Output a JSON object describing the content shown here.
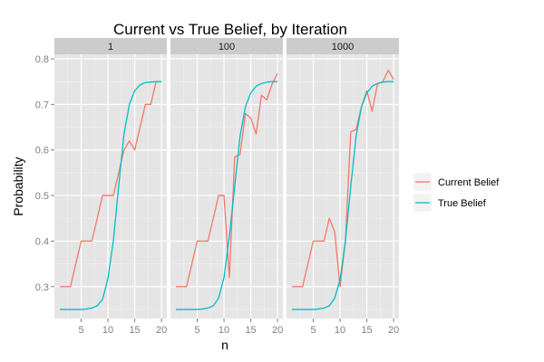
{
  "chart_data": {
    "type": "line",
    "title": "Current vs True Belief, by Iteration",
    "xlabel": "n",
    "ylabel": "Probability",
    "xlim": [
      0,
      21
    ],
    "ylim": [
      0.23,
      0.81
    ],
    "x_ticks": [
      5,
      10,
      15,
      20
    ],
    "y_ticks": [
      0.3,
      0.4,
      0.5,
      0.6,
      0.7,
      0.8
    ],
    "grid": true,
    "legend_position": "right",
    "colors": {
      "panel_bg": "#e5e5e5",
      "strip_bg": "#cccccc",
      "grid_major": "#ffffff",
      "grid_minor": "#f2f2f2",
      "Current Belief": "#f8766d",
      "True Belief": "#00bfc4"
    },
    "panels": [
      {
        "label": "1",
        "series": [
          {
            "name": "Current Belief",
            "x": [
              1,
              2,
              3,
              4,
              5,
              6,
              7,
              8,
              9,
              10,
              11,
              12,
              13,
              14,
              15,
              16,
              17,
              18,
              19,
              20
            ],
            "y": [
              0.3,
              0.3,
              0.3,
              0.35,
              0.4,
              0.4,
              0.4,
              0.45,
              0.5,
              0.5,
              0.5,
              0.55,
              0.6,
              0.62,
              0.6,
              0.65,
              0.7,
              0.7,
              0.75,
              0.75
            ]
          },
          {
            "name": "True Belief",
            "x": [
              1,
              2,
              3,
              4,
              5,
              6,
              7,
              8,
              9,
              10,
              11,
              12,
              13,
              14,
              15,
              16,
              17,
              18,
              19,
              20
            ],
            "y": [
              0.25,
              0.25,
              0.25,
              0.25,
              0.25,
              0.251,
              0.253,
              0.258,
              0.272,
              0.318,
              0.4,
              0.52,
              0.635,
              0.7,
              0.73,
              0.743,
              0.748,
              0.749,
              0.75,
              0.75
            ]
          }
        ]
      },
      {
        "label": "100",
        "series": [
          {
            "name": "Current Belief",
            "x": [
              1,
              2,
              3,
              4,
              5,
              6,
              7,
              8,
              9,
              10,
              11,
              12,
              13,
              14,
              15,
              16,
              17,
              18,
              19,
              20
            ],
            "y": [
              0.3,
              0.3,
              0.3,
              0.35,
              0.4,
              0.4,
              0.4,
              0.45,
              0.5,
              0.5,
              0.32,
              0.585,
              0.59,
              0.68,
              0.67,
              0.635,
              0.72,
              0.71,
              0.745,
              0.768
            ]
          },
          {
            "name": "True Belief",
            "x": [
              1,
              2,
              3,
              4,
              5,
              6,
              7,
              8,
              9,
              10,
              11,
              12,
              13,
              14,
              15,
              16,
              17,
              18,
              19,
              20
            ],
            "y": [
              0.25,
              0.25,
              0.25,
              0.25,
              0.25,
              0.251,
              0.253,
              0.258,
              0.275,
              0.32,
              0.41,
              0.52,
              0.63,
              0.695,
              0.725,
              0.74,
              0.746,
              0.749,
              0.75,
              0.75
            ]
          }
        ]
      },
      {
        "label": "1000",
        "series": [
          {
            "name": "Current Belief",
            "x": [
              1,
              2,
              3,
              4,
              5,
              6,
              7,
              8,
              9,
              10,
              11,
              12,
              13,
              14,
              15,
              16,
              17,
              18,
              19,
              20
            ],
            "y": [
              0.3,
              0.3,
              0.3,
              0.35,
              0.4,
              0.4,
              0.4,
              0.45,
              0.42,
              0.3,
              0.4,
              0.64,
              0.645,
              0.695,
              0.73,
              0.685,
              0.745,
              0.75,
              0.775,
              0.755
            ]
          },
          {
            "name": "True Belief",
            "x": [
              1,
              2,
              3,
              4,
              5,
              6,
              7,
              8,
              9,
              10,
              11,
              12,
              13,
              14,
              15,
              16,
              17,
              18,
              19,
              20
            ],
            "y": [
              0.25,
              0.25,
              0.25,
              0.25,
              0.25,
              0.251,
              0.253,
              0.258,
              0.275,
              0.315,
              0.4,
              0.52,
              0.63,
              0.695,
              0.725,
              0.74,
              0.746,
              0.749,
              0.75,
              0.75
            ]
          }
        ]
      }
    ],
    "legend": [
      {
        "name": "Current Belief",
        "color": "#f8766d"
      },
      {
        "name": "True Belief",
        "color": "#00bfc4"
      }
    ]
  }
}
